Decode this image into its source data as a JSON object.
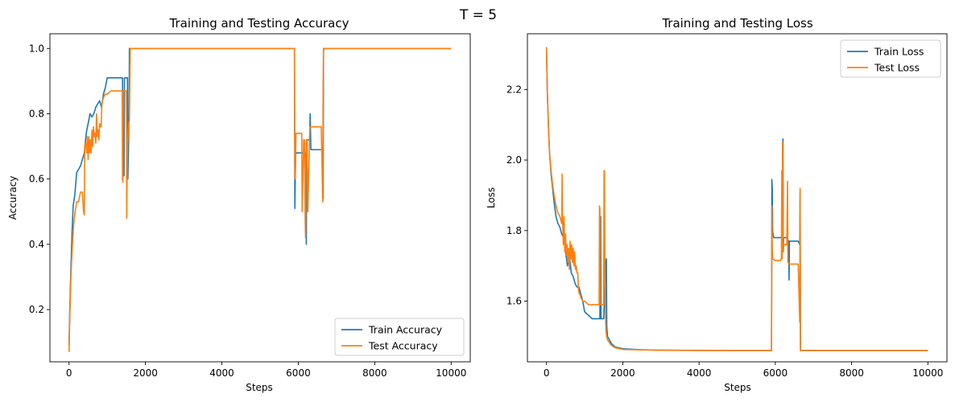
{
  "suptitle": "T = 5",
  "chart_data": [
    {
      "type": "line",
      "title": "Training and Testing Accuracy",
      "xlabel": "Steps",
      "ylabel": "Accuracy",
      "xlim": [
        -500,
        10500
      ],
      "ylim": [
        0.04,
        1.045
      ],
      "xticks": [
        0,
        2000,
        4000,
        6000,
        8000,
        10000
      ],
      "yticks": [
        0.2,
        0.4,
        0.6,
        0.8,
        1.0
      ],
      "xtick_labels": [
        "0",
        "2000",
        "4000",
        "6000",
        "8000",
        "10000"
      ],
      "ytick_labels": [
        "0.2",
        "0.4",
        "0.6",
        "0.8",
        "1.0"
      ],
      "grid": false,
      "legend_position": "lower-right",
      "series": [
        {
          "name": "Train Accuracy",
          "color": "#1f77b4",
          "x": [
            0,
            20,
            50,
            80,
            110,
            150,
            200,
            250,
            300,
            350,
            400,
            450,
            500,
            550,
            600,
            650,
            700,
            750,
            800,
            850,
            900,
            950,
            1000,
            1100,
            1200,
            1300,
            1400,
            1410,
            1440,
            1450,
            1460,
            1530,
            1540,
            1560,
            1570,
            1580,
            1600,
            1620,
            1650,
            2000,
            3000,
            4000,
            5000,
            5900,
            5910,
            5920,
            5930,
            5940,
            5950,
            6000,
            6100,
            6180,
            6190,
            6200,
            6210,
            6220,
            6230,
            6250,
            6300,
            6310,
            6330,
            6350,
            6360,
            6370,
            6380,
            6400,
            6500,
            6600,
            6640,
            6650,
            6660,
            6670,
            6680,
            6700,
            7000,
            8000,
            9000,
            10000
          ],
          "y": [
            0.09,
            0.2,
            0.33,
            0.44,
            0.52,
            0.55,
            0.62,
            0.63,
            0.64,
            0.66,
            0.68,
            0.74,
            0.77,
            0.8,
            0.79,
            0.8,
            0.82,
            0.83,
            0.84,
            0.82,
            0.86,
            0.88,
            0.91,
            0.91,
            0.91,
            0.91,
            0.91,
            0.63,
            0.61,
            0.91,
            0.91,
            0.91,
            0.6,
            0.72,
            0.8,
            1.0,
            1.0,
            1.0,
            1.0,
            1.0,
            1.0,
            1.0,
            1.0,
            1.0,
            0.51,
            0.6,
            0.67,
            0.68,
            0.68,
            0.68,
            0.68,
            0.68,
            0.48,
            0.66,
            0.4,
            0.7,
            0.72,
            0.72,
            0.72,
            0.8,
            0.69,
            0.69,
            0.69,
            0.69,
            0.69,
            0.69,
            0.69,
            0.69,
            0.69,
            0.54,
            0.99,
            1.0,
            1.0,
            1.0,
            1.0,
            1.0,
            1.0,
            1.0
          ]
        },
        {
          "name": "Test Accuracy",
          "color": "#ff7f0e",
          "x": [
            0,
            20,
            50,
            80,
            120,
            160,
            200,
            250,
            300,
            350,
            380,
            400,
            410,
            420,
            440,
            460,
            480,
            500,
            520,
            540,
            560,
            580,
            600,
            620,
            640,
            660,
            680,
            700,
            720,
            740,
            760,
            780,
            800,
            820,
            840,
            860,
            880,
            900,
            950,
            1000,
            1100,
            1200,
            1300,
            1390,
            1400,
            1410,
            1420,
            1430,
            1440,
            1450,
            1500,
            1510,
            1520,
            1530,
            1540,
            1560,
            1580,
            1600,
            1700,
            2000,
            5000,
            5900,
            5910,
            5920,
            5940,
            5960,
            6000,
            6080,
            6090,
            6100,
            6120,
            6140,
            6160,
            6180,
            6190,
            6200,
            6210,
            6230,
            6250,
            6300,
            6320,
            6350,
            6380,
            6400,
            6500,
            6600,
            6640,
            6650,
            6660,
            6670,
            6680,
            6700,
            7000,
            8000,
            9000,
            10000
          ],
          "y": [
            0.07,
            0.18,
            0.3,
            0.38,
            0.46,
            0.5,
            0.53,
            0.53,
            0.56,
            0.56,
            0.5,
            0.49,
            0.7,
            0.71,
            0.71,
            0.68,
            0.73,
            0.66,
            0.73,
            0.68,
            0.72,
            0.68,
            0.75,
            0.7,
            0.76,
            0.73,
            0.74,
            0.71,
            0.8,
            0.73,
            0.75,
            0.72,
            0.77,
            0.76,
            0.76,
            0.83,
            0.84,
            0.85,
            0.86,
            0.86,
            0.87,
            0.87,
            0.87,
            0.87,
            0.6,
            0.59,
            0.87,
            0.87,
            0.87,
            0.87,
            0.87,
            0.48,
            0.6,
            0.7,
            0.72,
            0.77,
            0.78,
            1.0,
            1.0,
            1.0,
            1.0,
            1.0,
            0.6,
            0.6,
            0.74,
            0.74,
            0.74,
            0.74,
            0.74,
            0.5,
            0.6,
            0.72,
            0.72,
            0.47,
            0.42,
            0.65,
            0.72,
            0.72,
            0.5,
            0.76,
            0.76,
            0.76,
            0.76,
            0.76,
            0.76,
            0.76,
            0.53,
            0.88,
            1.0,
            1.0,
            1.0,
            1.0,
            1.0,
            1.0,
            1.0,
            1.0
          ]
        }
      ]
    },
    {
      "type": "line",
      "title": "Training and Testing Loss",
      "xlabel": "Steps",
      "ylabel": "Loss",
      "xlim": [
        -500,
        10500
      ],
      "ylim": [
        1.428,
        2.358
      ],
      "xticks": [
        0,
        2000,
        4000,
        6000,
        8000,
        10000
      ],
      "yticks": [
        1.6,
        1.8,
        2.0,
        2.2
      ],
      "xtick_labels": [
        "0",
        "2000",
        "4000",
        "6000",
        "8000",
        "10000"
      ],
      "ytick_labels": [
        "1.6",
        "1.8",
        "2.0",
        "2.2"
      ],
      "grid": false,
      "legend_position": "upper-right",
      "series": [
        {
          "name": "Train Loss",
          "color": "#1f77b4",
          "x": [
            0,
            20,
            50,
            80,
            120,
            160,
            200,
            250,
            300,
            350,
            400,
            450,
            500,
            550,
            600,
            650,
            700,
            750,
            800,
            850,
            900,
            950,
            1000,
            1100,
            1200,
            1300,
            1400,
            1410,
            1420,
            1430,
            1440,
            1450,
            1500,
            1560,
            1570,
            1580,
            1600,
            1650,
            1700,
            1800,
            2000,
            2500,
            3000,
            4000,
            5000,
            5900,
            5910,
            5920,
            5930,
            5940,
            5960,
            6000,
            6100,
            6150,
            6180,
            6190,
            6200,
            6210,
            6220,
            6230,
            6240,
            6300,
            6350,
            6360,
            6370,
            6380,
            6400,
            6500,
            6600,
            6640,
            6650,
            6660,
            6670,
            6680,
            6700,
            7000,
            8000,
            9000,
            10000
          ],
          "y": [
            2.32,
            2.2,
            2.1,
            2.02,
            1.96,
            1.92,
            1.88,
            1.84,
            1.82,
            1.81,
            1.79,
            1.78,
            1.74,
            1.7,
            1.73,
            1.68,
            1.67,
            1.65,
            1.64,
            1.64,
            1.62,
            1.6,
            1.57,
            1.56,
            1.55,
            1.55,
            1.55,
            1.82,
            1.84,
            1.55,
            1.55,
            1.55,
            1.55,
            1.71,
            1.72,
            1.53,
            1.5,
            1.49,
            1.48,
            1.47,
            1.465,
            1.462,
            1.461,
            1.46,
            1.46,
            1.46,
            1.945,
            1.92,
            1.8,
            1.79,
            1.78,
            1.78,
            1.78,
            1.78,
            1.78,
            1.93,
            2.06,
            1.74,
            1.78,
            1.78,
            1.78,
            1.78,
            1.77,
            1.66,
            1.77,
            1.77,
            1.77,
            1.77,
            1.77,
            1.76,
            1.91,
            1.46,
            1.46,
            1.46,
            1.46,
            1.46,
            1.46,
            1.46,
            1.46
          ]
        },
        {
          "name": "Test Loss",
          "color": "#ff7f0e",
          "x": [
            0,
            20,
            50,
            80,
            120,
            160,
            200,
            250,
            300,
            350,
            400,
            410,
            420,
            440,
            460,
            480,
            500,
            520,
            540,
            560,
            580,
            600,
            620,
            640,
            660,
            680,
            700,
            720,
            740,
            760,
            780,
            800,
            820,
            840,
            860,
            880,
            900,
            950,
            1000,
            1100,
            1200,
            1300,
            1380,
            1390,
            1400,
            1410,
            1420,
            1440,
            1460,
            1500,
            1510,
            1520,
            1530,
            1550,
            1560,
            1570,
            1580,
            1600,
            1700,
            1800,
            2000,
            3000,
            5000,
            5900,
            5910,
            5920,
            5930,
            6000,
            6100,
            6120,
            6140,
            6150,
            6160,
            6170,
            6180,
            6190,
            6200,
            6210,
            6220,
            6230,
            6300,
            6320,
            6330,
            6340,
            6350,
            6400,
            6500,
            6600,
            6640,
            6650,
            6660,
            6670,
            6680,
            6700,
            7000,
            8000,
            9000,
            10000
          ],
          "y": [
            2.32,
            2.2,
            2.1,
            2.02,
            1.97,
            1.93,
            1.9,
            1.87,
            1.85,
            1.84,
            1.82,
            1.96,
            1.84,
            1.76,
            1.84,
            1.74,
            1.79,
            1.73,
            1.76,
            1.71,
            1.75,
            1.69,
            1.77,
            1.72,
            1.76,
            1.71,
            1.75,
            1.7,
            1.74,
            1.69,
            1.7,
            1.68,
            1.68,
            1.63,
            1.62,
            1.62,
            1.61,
            1.6,
            1.6,
            1.59,
            1.59,
            1.59,
            1.59,
            1.87,
            1.86,
            1.59,
            1.59,
            1.59,
            1.59,
            1.59,
            1.97,
            1.97,
            1.72,
            1.55,
            1.52,
            1.505,
            1.5,
            1.49,
            1.475,
            1.468,
            1.463,
            1.461,
            1.46,
            1.46,
            1.87,
            1.75,
            1.72,
            1.715,
            1.715,
            1.715,
            1.715,
            1.72,
            1.72,
            1.97,
            1.72,
            2.05,
            1.93,
            1.74,
            1.76,
            1.76,
            1.76,
            1.94,
            1.71,
            1.71,
            1.705,
            1.705,
            1.705,
            1.705,
            1.54,
            1.92,
            1.46,
            1.46,
            1.46,
            1.46,
            1.46,
            1.46,
            1.46,
            1.46
          ]
        }
      ]
    }
  ]
}
